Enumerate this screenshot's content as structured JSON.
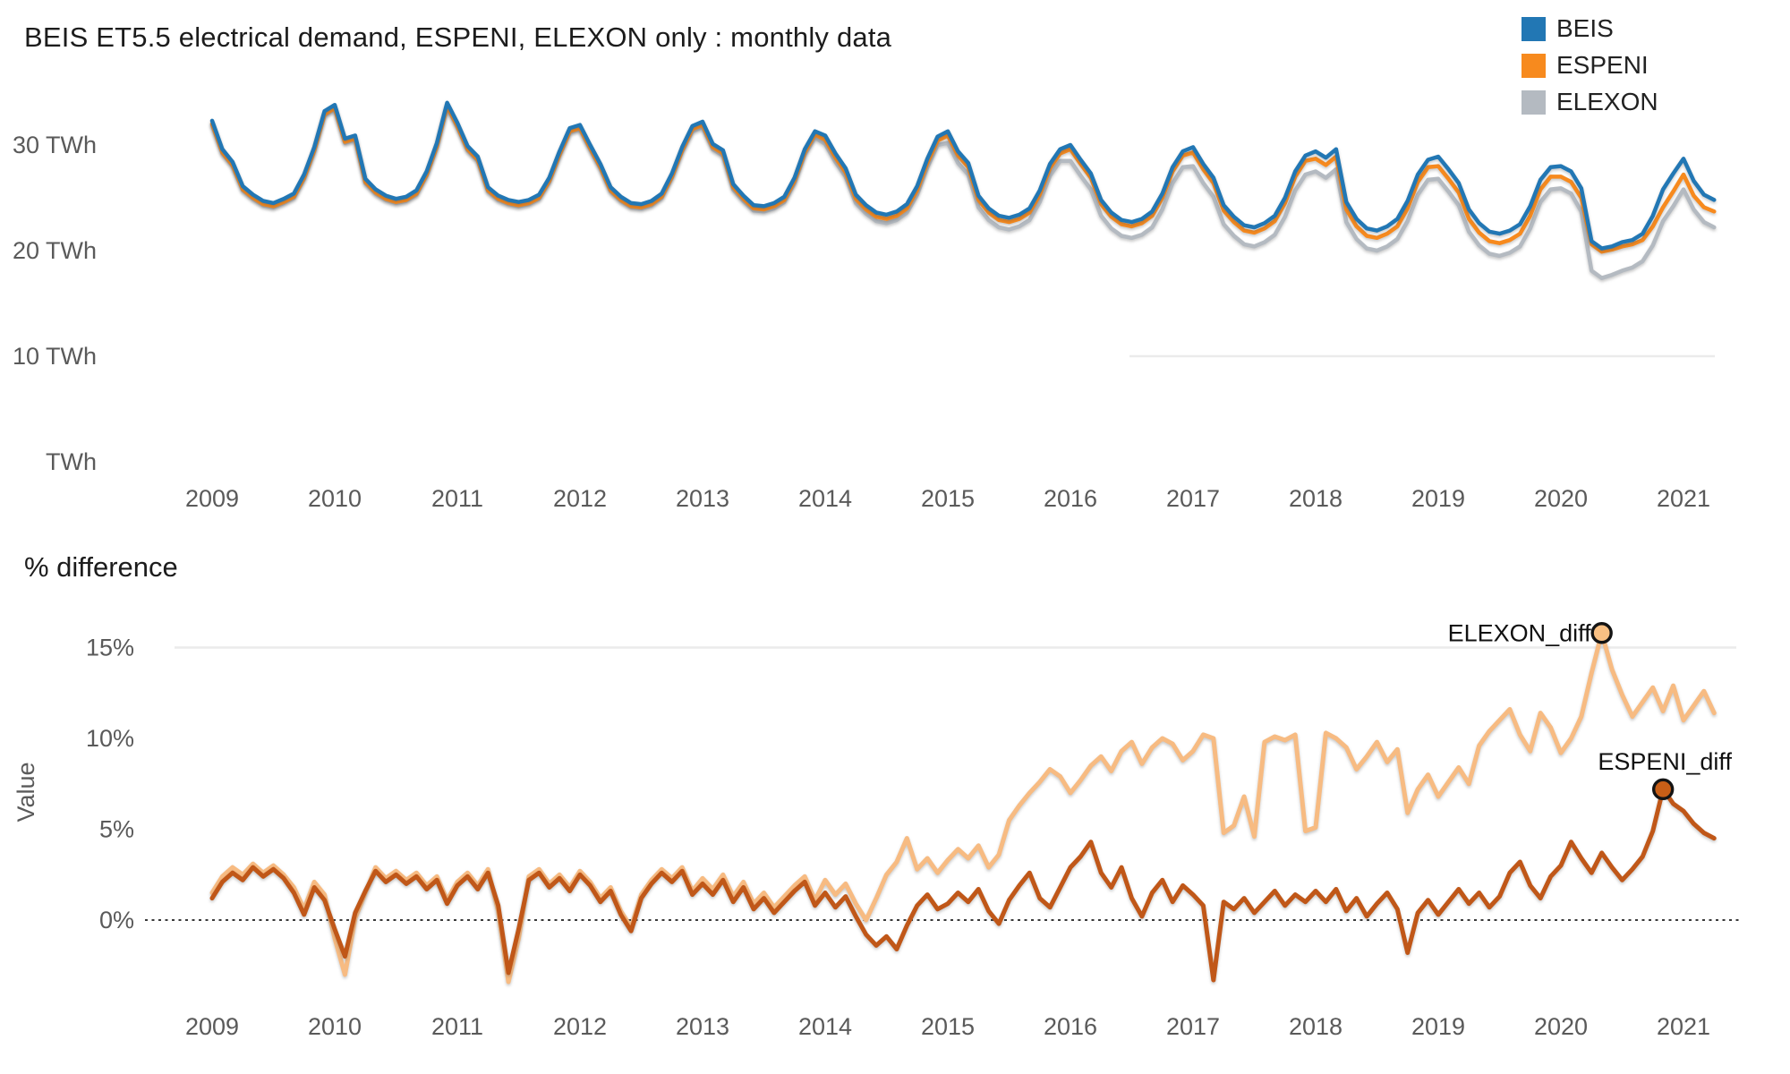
{
  "chart_data": [
    {
      "type": "line",
      "title": "BEIS ET5.5 electrical demand, ESPENI, ELEXON only : monthly data",
      "y_unit": "TWh",
      "x_monthly_start": "2009-01",
      "x_tick_labels": [
        "2009",
        "2010",
        "2011",
        "2012",
        "2013",
        "2014",
        "2015",
        "2016",
        "2017",
        "2018",
        "2019",
        "2020",
        "2021"
      ],
      "y_ticks": [
        {
          "value": 30,
          "label": "30 TWh"
        },
        {
          "value": 20,
          "label": "20 TWh"
        },
        {
          "value": 10,
          "label": "10 TWh"
        },
        {
          "value": 0,
          "label": "TWh"
        }
      ],
      "legend_position": "top-right",
      "grid": "minimal",
      "series": [
        {
          "name": "BEIS",
          "color": "#2277b4",
          "values": [
            32.3,
            29.6,
            28.4,
            26.1,
            25.3,
            24.7,
            24.5,
            24.9,
            25.4,
            27.2,
            29.8,
            33.2,
            33.8,
            30.6,
            30.9,
            26.8,
            25.8,
            25.2,
            24.9,
            25.1,
            25.7,
            27.5,
            30.2,
            34.0,
            32.1,
            29.9,
            28.9,
            26.0,
            25.2,
            24.8,
            24.6,
            24.8,
            25.3,
            26.9,
            29.4,
            31.6,
            31.9,
            30.0,
            28.2,
            26.0,
            25.1,
            24.5,
            24.4,
            24.7,
            25.4,
            27.3,
            29.8,
            31.8,
            32.2,
            30.1,
            29.5,
            26.3,
            25.2,
            24.3,
            24.2,
            24.5,
            25.1,
            26.9,
            29.6,
            31.3,
            30.9,
            29.2,
            27.8,
            25.3,
            24.3,
            23.6,
            23.4,
            23.7,
            24.4,
            26.1,
            28.7,
            30.8,
            31.3,
            29.4,
            28.3,
            25.2,
            24.0,
            23.3,
            23.1,
            23.4,
            24.0,
            25.7,
            28.2,
            29.6,
            30.0,
            28.6,
            27.3,
            24.8,
            23.6,
            22.9,
            22.7,
            23.0,
            23.7,
            25.4,
            27.9,
            29.4,
            29.8,
            28.2,
            26.9,
            24.3,
            23.2,
            22.4,
            22.2,
            22.6,
            23.3,
            25.0,
            27.5,
            29.0,
            29.4,
            28.8,
            29.6,
            24.6,
            23.0,
            22.1,
            21.9,
            22.3,
            23.0,
            24.7,
            27.2,
            28.6,
            28.9,
            27.7,
            26.4,
            23.9,
            22.6,
            21.8,
            21.6,
            21.9,
            22.5,
            24.2,
            26.7,
            27.9,
            28.0,
            27.5,
            25.9,
            20.9,
            20.2,
            20.4,
            20.8,
            21.0,
            21.6,
            23.3,
            25.8,
            27.3,
            28.7,
            26.6,
            25.3,
            24.8
          ]
        },
        {
          "name": "ESPENI",
          "color": "#f78a1e",
          "values": [
            32.0,
            29.3,
            28.1,
            25.8,
            25.0,
            24.4,
            24.2,
            24.6,
            25.1,
            26.9,
            29.5,
            32.9,
            33.5,
            30.3,
            30.6,
            26.5,
            25.5,
            24.9,
            24.6,
            24.8,
            25.4,
            27.2,
            29.9,
            33.7,
            31.8,
            29.6,
            28.6,
            25.7,
            24.9,
            24.5,
            24.3,
            24.5,
            25.0,
            26.6,
            29.1,
            31.3,
            31.6,
            29.7,
            27.9,
            25.7,
            24.8,
            24.2,
            24.1,
            24.4,
            25.1,
            27.0,
            29.5,
            31.5,
            31.9,
            29.8,
            29.2,
            26.0,
            24.9,
            24.0,
            23.9,
            24.2,
            24.8,
            26.6,
            29.3,
            31.0,
            30.5,
            28.8,
            27.4,
            24.9,
            23.9,
            23.2,
            23.0,
            23.3,
            24.0,
            25.7,
            28.3,
            30.4,
            30.9,
            29.0,
            27.9,
            24.8,
            23.6,
            22.9,
            22.7,
            23.0,
            23.6,
            25.3,
            27.8,
            29.2,
            29.6,
            28.2,
            26.9,
            24.4,
            23.2,
            22.5,
            22.3,
            22.6,
            23.3,
            25.0,
            27.5,
            29.0,
            29.3,
            27.7,
            26.4,
            23.8,
            22.7,
            21.9,
            21.7,
            22.1,
            22.8,
            24.5,
            27.0,
            28.5,
            28.7,
            28.1,
            28.9,
            23.9,
            22.3,
            21.4,
            21.2,
            21.6,
            22.3,
            24.0,
            26.5,
            27.9,
            28.0,
            26.8,
            25.5,
            23.0,
            21.7,
            20.9,
            20.7,
            21.0,
            21.6,
            23.3,
            25.8,
            27.0,
            27.0,
            26.5,
            25.0,
            20.6,
            19.9,
            20.1,
            20.4,
            20.6,
            21.0,
            22.3,
            24.1,
            25.6,
            27.2,
            25.2,
            24.1,
            23.7
          ]
        },
        {
          "name": "ELEXON",
          "color": "#b4bac1",
          "values": [
            31.9,
            29.2,
            28.0,
            25.7,
            24.9,
            24.3,
            24.1,
            24.5,
            25.0,
            26.8,
            29.4,
            32.8,
            33.4,
            30.2,
            30.5,
            26.4,
            25.4,
            24.8,
            24.5,
            24.7,
            25.3,
            27.1,
            29.8,
            33.6,
            31.7,
            29.5,
            28.5,
            25.6,
            24.8,
            24.4,
            24.2,
            24.4,
            24.9,
            26.5,
            29.0,
            31.2,
            31.5,
            29.6,
            27.8,
            25.6,
            24.7,
            24.1,
            24.0,
            24.3,
            25.0,
            26.9,
            29.4,
            31.3,
            31.7,
            29.6,
            29.0,
            25.8,
            24.7,
            23.8,
            23.7,
            24.0,
            24.6,
            26.4,
            29.1,
            30.7,
            30.1,
            28.4,
            27.0,
            24.5,
            23.5,
            22.8,
            22.6,
            22.9,
            23.6,
            25.3,
            27.9,
            30.0,
            30.2,
            28.3,
            27.2,
            24.1,
            22.9,
            22.2,
            22.0,
            22.3,
            22.9,
            24.6,
            27.1,
            28.5,
            28.5,
            27.1,
            25.8,
            23.3,
            22.1,
            21.4,
            21.2,
            21.5,
            22.2,
            23.9,
            26.4,
            27.9,
            28.0,
            26.4,
            25.1,
            22.5,
            21.4,
            20.6,
            20.4,
            20.8,
            21.5,
            23.2,
            25.7,
            27.2,
            27.5,
            26.9,
            27.7,
            22.7,
            21.1,
            20.2,
            20.0,
            20.4,
            21.1,
            22.8,
            25.3,
            26.7,
            26.8,
            25.6,
            24.3,
            21.8,
            20.5,
            19.7,
            19.5,
            19.8,
            20.4,
            22.1,
            24.6,
            25.8,
            25.9,
            25.4,
            23.7,
            18.1,
            17.4,
            17.7,
            18.1,
            18.4,
            19.0,
            20.5,
            22.8,
            24.2,
            25.8,
            23.9,
            22.7,
            22.2
          ]
        }
      ]
    },
    {
      "type": "line",
      "title": "% difference",
      "ylabel": "Value",
      "y_unit": "%",
      "x_monthly_start": "2009-01",
      "x_tick_labels": [
        "2009",
        "2010",
        "2011",
        "2012",
        "2013",
        "2014",
        "2015",
        "2016",
        "2017",
        "2018",
        "2019",
        "2020",
        "2021"
      ],
      "y_ticks": [
        {
          "value": 15,
          "label": "15%"
        },
        {
          "value": 10,
          "label": "10%"
        },
        {
          "value": 5,
          "label": "5%"
        },
        {
          "value": 0,
          "label": "0%"
        }
      ],
      "zero_line": "dotted",
      "series": [
        {
          "name": "ELEXON_diff",
          "color": "#f7bb82",
          "values": [
            1.5,
            2.4,
            2.9,
            2.5,
            3.1,
            2.6,
            3.0,
            2.5,
            1.8,
            0.6,
            2.1,
            1.4,
            -1.0,
            -3.0,
            0.1,
            1.5,
            2.9,
            2.3,
            2.7,
            2.2,
            2.6,
            1.9,
            2.4,
            1.1,
            2.1,
            2.6,
            1.9,
            2.8,
            0.5,
            -3.4,
            -1.0,
            2.4,
            2.8,
            2.0,
            2.5,
            1.8,
            2.7,
            2.1,
            1.2,
            1.8,
            0.5,
            -0.4,
            1.4,
            2.2,
            2.8,
            2.3,
            2.9,
            1.6,
            2.3,
            1.7,
            2.5,
            1.3,
            2.1,
            0.9,
            1.5,
            0.7,
            1.3,
            1.9,
            2.4,
            1.1,
            2.2,
            1.4,
            2.0,
            0.9,
            0.0,
            1.2,
            2.5,
            3.2,
            4.5,
            2.8,
            3.4,
            2.6,
            3.3,
            3.9,
            3.4,
            4.1,
            2.9,
            3.6,
            5.5,
            6.3,
            7.0,
            7.6,
            8.3,
            7.9,
            7.0,
            7.7,
            8.5,
            9.0,
            8.2,
            9.3,
            9.8,
            8.6,
            9.5,
            10.0,
            9.7,
            8.8,
            9.3,
            10.2,
            10.0,
            4.8,
            5.2,
            6.8,
            4.6,
            9.8,
            10.1,
            9.9,
            10.2,
            4.9,
            5.1,
            10.3,
            10.0,
            9.5,
            8.3,
            9.0,
            9.8,
            8.7,
            9.4,
            5.9,
            7.2,
            8.0,
            6.8,
            7.6,
            8.4,
            7.5,
            9.6,
            10.4,
            11.0,
            11.6,
            10.2,
            9.3,
            11.4,
            10.6,
            9.2,
            10.0,
            11.2,
            13.6,
            15.8,
            13.8,
            12.4,
            11.2,
            12.0,
            12.8,
            11.5,
            12.9,
            11.0,
            11.8,
            12.6,
            11.4
          ]
        },
        {
          "name": "ESPENI_diff",
          "color": "#c05718",
          "values": [
            1.2,
            2.1,
            2.6,
            2.2,
            2.9,
            2.4,
            2.8,
            2.3,
            1.5,
            0.3,
            1.8,
            1.1,
            -0.5,
            -2.0,
            0.4,
            1.6,
            2.7,
            2.1,
            2.5,
            2.0,
            2.4,
            1.7,
            2.2,
            0.9,
            1.9,
            2.4,
            1.7,
            2.6,
            0.8,
            -2.9,
            -0.5,
            2.2,
            2.6,
            1.8,
            2.3,
            1.6,
            2.5,
            1.9,
            1.0,
            1.6,
            0.3,
            -0.6,
            1.2,
            2.0,
            2.6,
            2.1,
            2.7,
            1.4,
            2.0,
            1.4,
            2.2,
            1.0,
            1.8,
            0.6,
            1.2,
            0.4,
            1.0,
            1.6,
            2.1,
            0.8,
            1.5,
            0.7,
            1.3,
            0.2,
            -0.8,
            -1.4,
            -0.9,
            -1.6,
            -0.3,
            0.8,
            1.4,
            0.6,
            0.9,
            1.5,
            1.0,
            1.7,
            0.5,
            -0.2,
            1.1,
            1.9,
            2.6,
            1.2,
            0.7,
            1.8,
            2.9,
            3.5,
            4.3,
            2.6,
            1.8,
            2.9,
            1.2,
            0.2,
            1.5,
            2.2,
            1.0,
            1.9,
            1.4,
            0.8,
            -3.3,
            1.0,
            0.6,
            1.2,
            0.4,
            1.0,
            1.6,
            0.8,
            1.4,
            1.0,
            1.6,
            1.0,
            1.7,
            0.5,
            1.2,
            0.2,
            0.9,
            1.5,
            0.6,
            -1.8,
            0.4,
            1.1,
            0.3,
            1.0,
            1.7,
            0.9,
            1.5,
            0.7,
            1.3,
            2.6,
            3.2,
            1.9,
            1.2,
            2.4,
            3.0,
            4.3,
            3.4,
            2.6,
            3.7,
            2.9,
            2.2,
            2.8,
            3.5,
            4.9,
            7.2,
            6.4,
            6.0,
            5.3,
            4.8,
            4.5
          ]
        }
      ],
      "annotations": [
        {
          "text": "ELEXON_diff",
          "month": "2020-05",
          "value": 15.8,
          "marker_fill": "#f9c083",
          "placement": "left"
        },
        {
          "text": "ESPENI_diff",
          "month": "2020-11",
          "value": 7.2,
          "marker_fill": "#c95f17",
          "placement": "above"
        }
      ]
    }
  ]
}
